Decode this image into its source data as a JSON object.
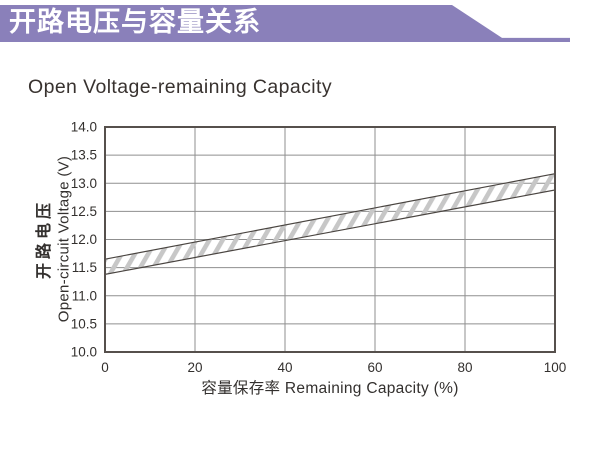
{
  "header": {
    "title": "开路电压与容量关系",
    "bg_color": "#8a80ba",
    "text_color": "#ffffff"
  },
  "section_title": "Open Voltage-remaining Capacity",
  "chart_data": {
    "type": "area",
    "subtype": "band",
    "title": "Open Voltage-remaining Capacity",
    "xlabel": "容量保存率 Remaining Capacity (%)",
    "ylabel_cjk": "开路电压",
    "ylabel": "Open-circuit Voltage (V)",
    "xlim": [
      0,
      100
    ],
    "ylim": [
      10.0,
      14.0
    ],
    "xticks": [
      0,
      20,
      40,
      60,
      80,
      100
    ],
    "yticks": [
      10.0,
      10.5,
      11.0,
      11.5,
      12.0,
      12.5,
      13.0,
      13.5,
      14.0
    ],
    "grid": true,
    "legend": "none",
    "band": {
      "x": [
        0,
        100
      ],
      "upper": [
        11.65,
        13.17
      ],
      "lower": [
        11.38,
        12.88
      ],
      "fill_style": "diagonal-hatch",
      "hatch_angle_deg": 60,
      "hatch_color": "#c7c7c7",
      "edge_color": "#4a4541"
    },
    "colors": {
      "grid": "#8f8f8f",
      "frame": "#56504c",
      "tick_text": "#33302e"
    }
  }
}
